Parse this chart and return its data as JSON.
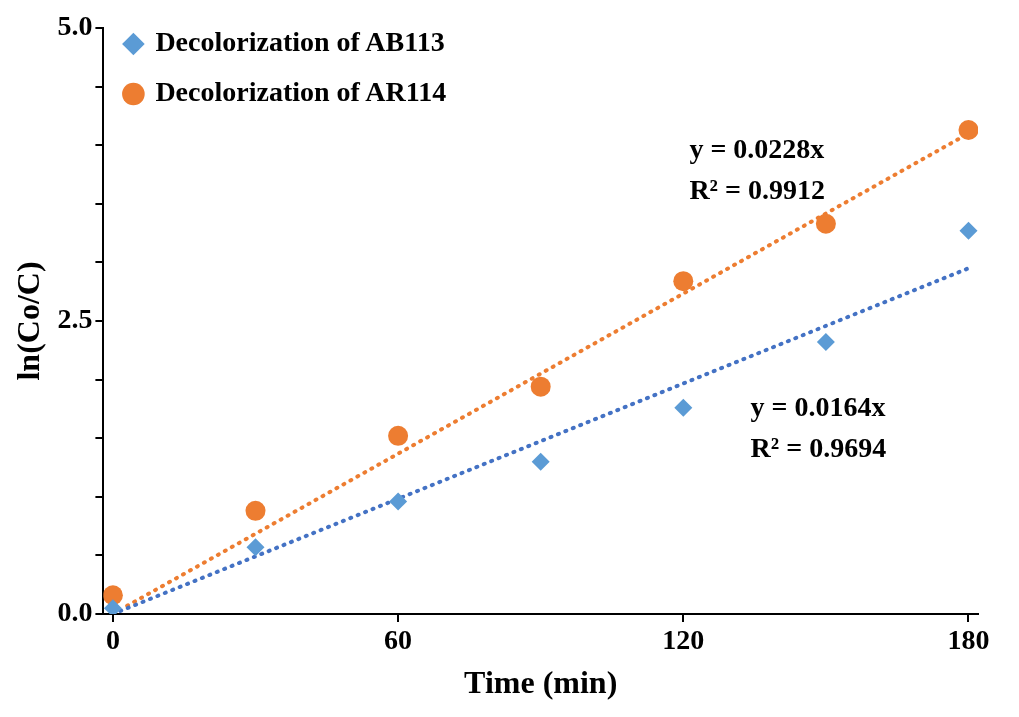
{
  "chart_data": {
    "type": "scatter",
    "xlabel": "Time (min)",
    "ylabel": "ln(Co/C)",
    "xlim": [
      -2,
      182
    ],
    "xticks": [
      0,
      60,
      120,
      180
    ],
    "ylim": [
      0,
      5
    ],
    "yticks": [
      {
        "value": 0,
        "label": "0.0"
      },
      {
        "value": 0.5,
        "label": null
      },
      {
        "value": 1,
        "label": null
      },
      {
        "value": 1.5,
        "label": null
      },
      {
        "value": 2,
        "label": null
      },
      {
        "value": 2.5,
        "label": "2.5"
      },
      {
        "value": 3,
        "label": null
      },
      {
        "value": 3.5,
        "label": null
      },
      {
        "value": 4,
        "label": null
      },
      {
        "value": 4.5,
        "label": null
      },
      {
        "value": 5,
        "label": "5.0"
      }
    ],
    "grid": false,
    "legend": "top left",
    "series": [
      {
        "name": "Decolorization of AB113",
        "color": "#5b9bd5",
        "marker": "diamond",
        "x": [
          0,
          30,
          60,
          90,
          120,
          150,
          180
        ],
        "values": [
          0.05,
          0.57,
          0.96,
          1.3,
          1.76,
          2.32,
          3.27
        ]
      },
      {
        "name": "Decolorization of AR114",
        "color": "#ed7d31",
        "marker": "circle",
        "x": [
          0,
          30,
          60,
          90,
          120,
          150,
          180
        ],
        "values": [
          0.16,
          0.88,
          1.52,
          1.94,
          2.84,
          3.33,
          4.13
        ]
      },
      {
        "type": "line",
        "color": "#4472c4",
        "marker": "none",
        "line_style": "dotted",
        "x": [
          0,
          180
        ],
        "values": [
          0,
          2.95
        ]
      },
      {
        "type": "line",
        "color": "#ed7d31",
        "marker": "none",
        "line_style": "dotted",
        "x": [
          3,
          180
        ],
        "values": [
          0.07,
          4.1
        ]
      }
    ],
    "annotations": [
      "y = 0.0228x",
      "R² = 0.9912",
      "y = 0.0164x",
      "R² = 0.9694"
    ]
  }
}
